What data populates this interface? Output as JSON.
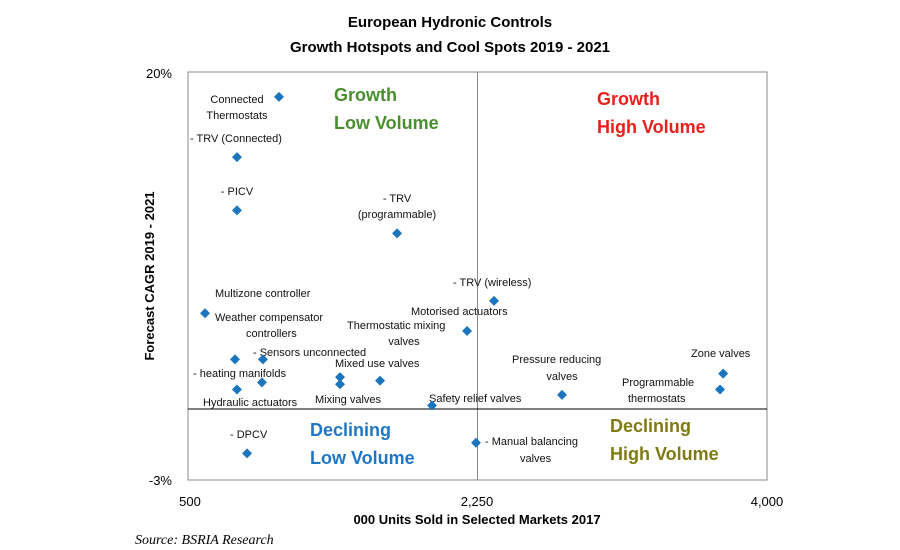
{
  "chart_data": {
    "type": "scatter",
    "title": [
      "European Hydronic Controls",
      "Growth Hotspots and Cool Spots 2019 - 2021"
    ],
    "xlabel": "000 Units Sold in Selected Markets 2017",
    "ylabel": "Forecast CAGR 2019 - 2021",
    "xlim": [
      500,
      4000
    ],
    "ylim": [
      -3,
      20
    ],
    "x_ticks": [
      "500",
      "2,250",
      "4,000"
    ],
    "y_ticks": [
      "20%",
      "-3%"
    ],
    "grid": false,
    "quadrant_divider": {
      "x": 2250,
      "y": 1
    },
    "marker_color": "#1a75bc",
    "points": [
      {
        "x": 1050,
        "y": 18.6
      },
      {
        "x": 796,
        "y": 15.2
      },
      {
        "x": 796,
        "y": 12.2
      },
      {
        "x": 1764,
        "y": 10.9
      },
      {
        "x": 2350,
        "y": 7.1
      },
      {
        "x": 603,
        "y": 6.4
      },
      {
        "x": 2187,
        "y": 5.4
      },
      {
        "x": 784,
        "y": 3.8
      },
      {
        "x": 953,
        "y": 3.8
      },
      {
        "x": 947,
        "y": 2.5
      },
      {
        "x": 796,
        "y": 2.1
      },
      {
        "x": 1419,
        "y": 2.8
      },
      {
        "x": 1419,
        "y": 2.4
      },
      {
        "x": 1661,
        "y": 2.6
      },
      {
        "x": 1975,
        "y": 1.2
      },
      {
        "x": 2761,
        "y": 1.8
      },
      {
        "x": 3735,
        "y": 3.0
      },
      {
        "x": 3716,
        "y": 2.1
      },
      {
        "x": 2241,
        "y": -0.9
      },
      {
        "x": 857,
        "y": -1.5
      }
    ],
    "annotations": [
      [
        "Connected",
        "Thermostats"
      ],
      [
        "- TRV (Connected)"
      ],
      [
        "- PICV"
      ],
      [
        "- TRV",
        "(programmable)"
      ],
      [
        "- TRV (wireless)"
      ],
      [
        "Multizone controller"
      ],
      [
        "Weather compensator",
        "controllers"
      ],
      [
        "Motorised actuators"
      ],
      [
        "Thermostatic mixing",
        "valves"
      ],
      [
        "- Sensors unconnected"
      ],
      [
        "- heating manifolds"
      ],
      [
        "Hydraulic actuators"
      ],
      [
        "Mixed use valves"
      ],
      [
        "Mixing valves"
      ],
      [
        "Safety relief valves"
      ],
      [
        "Pressure reducing",
        "valves"
      ],
      [
        "Zone valves"
      ],
      [
        "Programmable",
        "thermostats"
      ],
      [
        "- Manual balancing",
        "valves"
      ],
      [
        "- DPCV"
      ]
    ],
    "quadrants": [
      {
        "lines": [
          "Growth",
          "Low  Volume"
        ],
        "color": "#4a8f2f"
      },
      {
        "lines": [
          "Growth",
          "High Volume"
        ],
        "color": "#e8201b"
      },
      {
        "lines": [
          "Declining",
          "Low Volume"
        ],
        "color": "#1f77c4"
      },
      {
        "lines": [
          "Declining",
          "High Volume"
        ],
        "color": "#7f7a12"
      }
    ],
    "source": "Source: BSRIA Research"
  }
}
